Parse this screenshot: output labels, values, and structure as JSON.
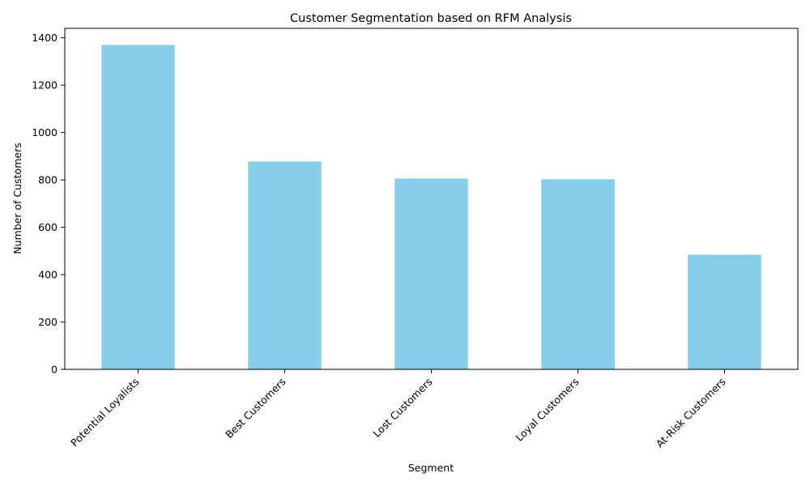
{
  "chart_data": {
    "type": "bar",
    "title": "Customer Segmentation based on RFM Analysis",
    "xlabel": "Segment",
    "ylabel": "Number of Customers",
    "categories": [
      "Potential Loyalists",
      "Best Customers",
      "Lost Customers",
      "Loyal Customers",
      "At-Risk Customers"
    ],
    "values": [
      1370,
      878,
      806,
      803,
      484
    ],
    "ylim": [
      0,
      1440
    ],
    "yticks": [
      0,
      200,
      400,
      600,
      800,
      1000,
      1200,
      1400
    ],
    "grid": false,
    "legend": "none",
    "bar_color": "#87ceeb"
  }
}
